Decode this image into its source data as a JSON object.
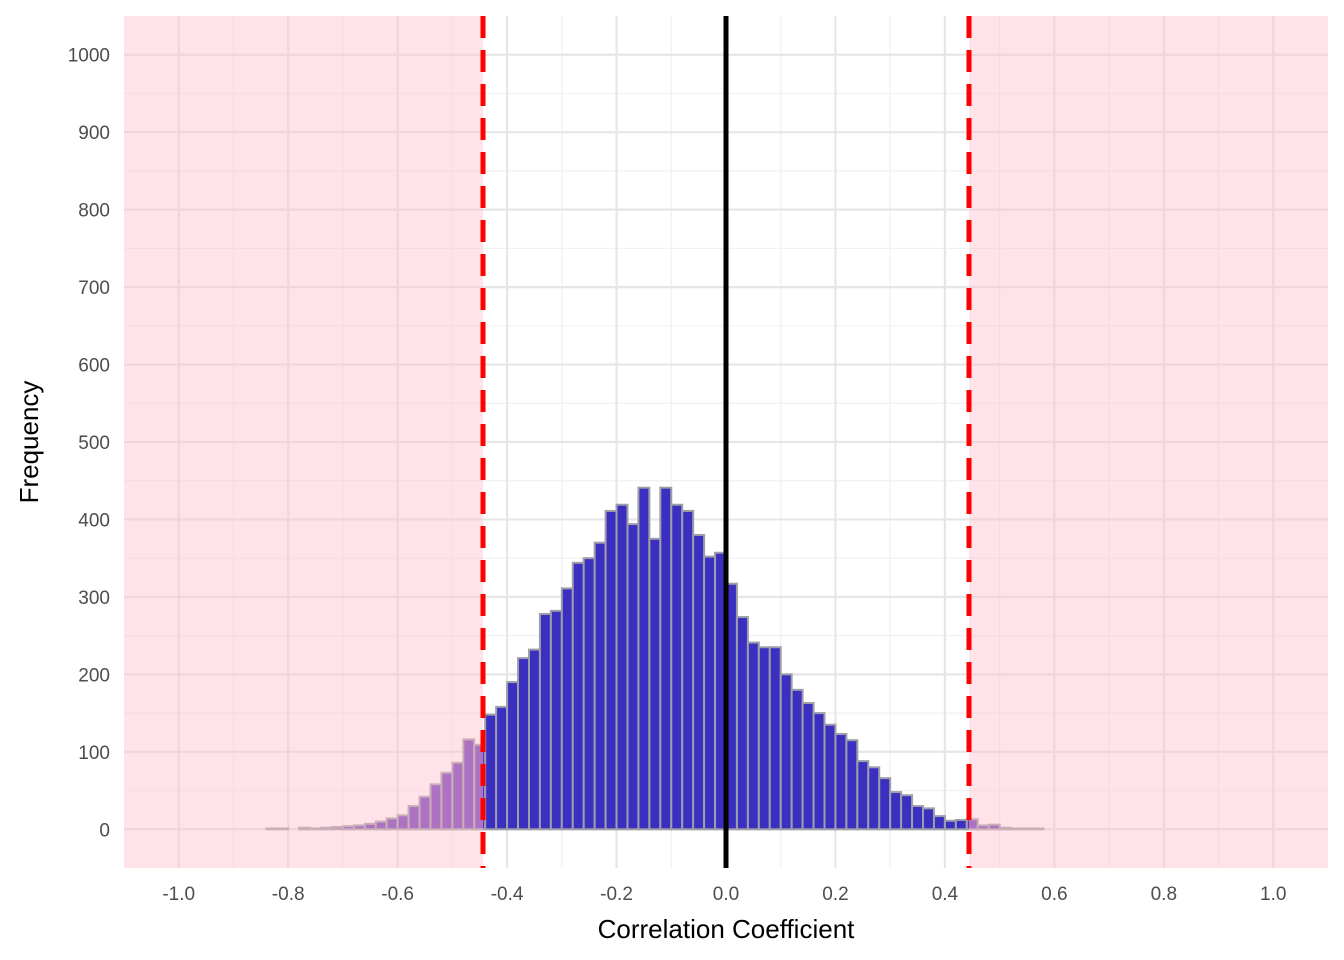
{
  "chart_data": {
    "type": "bar",
    "title": "",
    "xlabel": "Correlation Coefficient",
    "ylabel": "Frequency",
    "xlim": [
      -1.1,
      1.1
    ],
    "ylim": [
      -50,
      1050
    ],
    "x_ticks": [
      "-1.0",
      "-0.8",
      "-0.6",
      "-0.4",
      "-0.2",
      "0.0",
      "0.2",
      "0.4",
      "0.6",
      "0.8",
      "1.0"
    ],
    "x_tick_values": [
      -1.0,
      -0.8,
      -0.6,
      -0.4,
      -0.2,
      0.0,
      0.2,
      0.4,
      0.6,
      0.8,
      1.0
    ],
    "y_ticks": [
      "0",
      "100",
      "200",
      "300",
      "400",
      "500",
      "600",
      "700",
      "800",
      "900",
      "1000"
    ],
    "y_tick_values": [
      0,
      100,
      200,
      300,
      400,
      500,
      600,
      700,
      800,
      900,
      1000
    ],
    "grid": true,
    "bin_width": 0.02,
    "bins": {
      "centers": [
        -1.09,
        -1.07,
        -1.05,
        -1.03,
        -1.01,
        -0.99,
        -0.97,
        -0.95,
        -0.93,
        -0.91,
        -0.89,
        -0.87,
        -0.85,
        -0.83,
        -0.81,
        -0.79,
        -0.77,
        -0.75,
        -0.73,
        -0.71,
        -0.69,
        -0.67,
        -0.65,
        -0.63,
        -0.61,
        -0.59,
        -0.57,
        -0.55,
        -0.53,
        -0.51,
        -0.49,
        -0.47,
        -0.45,
        -0.43,
        -0.41,
        -0.39,
        -0.37,
        -0.35,
        -0.33,
        -0.31,
        -0.29,
        -0.27,
        -0.25,
        -0.23,
        -0.21,
        -0.19,
        -0.17,
        -0.15,
        -0.13,
        -0.11,
        -0.09,
        -0.07,
        -0.05,
        -0.03,
        -0.01,
        0.01,
        0.03,
        0.05,
        0.07,
        0.09,
        0.11,
        0.13,
        0.15,
        0.17,
        0.19,
        0.21,
        0.23,
        0.25,
        0.27,
        0.29,
        0.31,
        0.33,
        0.35,
        0.37,
        0.39,
        0.41,
        0.43,
        0.45,
        0.47,
        0.49,
        0.51,
        0.53,
        0.55,
        0.57,
        0.59,
        0.61,
        0.63,
        0.65,
        0.67,
        0.69,
        0.71,
        0.73,
        0.75,
        0.77,
        0.79,
        0.81,
        0.83,
        0.85,
        0.87,
        0.89,
        0.91,
        0.93,
        0.95,
        0.97,
        0.99,
        1.01,
        1.03,
        1.05,
        1.07,
        1.09
      ],
      "counts": [
        0,
        0,
        0,
        0,
        0,
        0,
        0,
        0,
        0,
        0,
        0,
        0,
        0,
        1,
        1,
        0,
        2,
        1,
        2,
        3,
        4,
        5,
        7,
        10,
        14,
        18,
        30,
        42,
        58,
        73,
        86,
        116,
        109,
        148,
        158,
        190,
        221,
        232,
        278,
        282,
        311,
        344,
        350,
        370,
        411,
        419,
        394,
        441,
        375,
        441,
        419,
        411,
        380,
        352,
        357,
        317,
        274,
        241,
        235,
        235,
        200,
        180,
        163,
        150,
        135,
        123,
        115,
        88,
        80,
        66,
        48,
        44,
        30,
        27,
        17,
        11,
        12,
        13,
        5,
        6,
        2,
        1,
        1,
        1,
        0,
        0,
        0,
        0,
        0,
        0,
        0,
        0,
        0,
        0,
        0,
        0,
        0,
        0,
        0,
        0,
        0,
        0,
        0,
        0,
        0,
        0,
        0,
        0,
        0,
        0
      ]
    },
    "vlines": [
      {
        "x": 0.0,
        "color": "#000000",
        "style": "solid"
      },
      {
        "x": -0.444,
        "color": "#ff0000",
        "style": "dashed"
      },
      {
        "x": 0.444,
        "color": "#ff0000",
        "style": "dashed"
      }
    ],
    "shaded_regions": [
      {
        "from": -1.1,
        "to": -0.444,
        "color": "#ffc0cb"
      },
      {
        "from": 0.444,
        "to": 1.1,
        "color": "#ffc0cb"
      }
    ],
    "colors": {
      "bar_fill": "#3a2fc0",
      "bar_fill_in_shaded": "#6a32b8",
      "bar_stroke": "#9e9ea8",
      "grid_major": "#e6e6e6",
      "grid_minor": "#f1f1f1",
      "shade": "#ffc0cb",
      "tick_text": "#4d4d4d"
    }
  }
}
